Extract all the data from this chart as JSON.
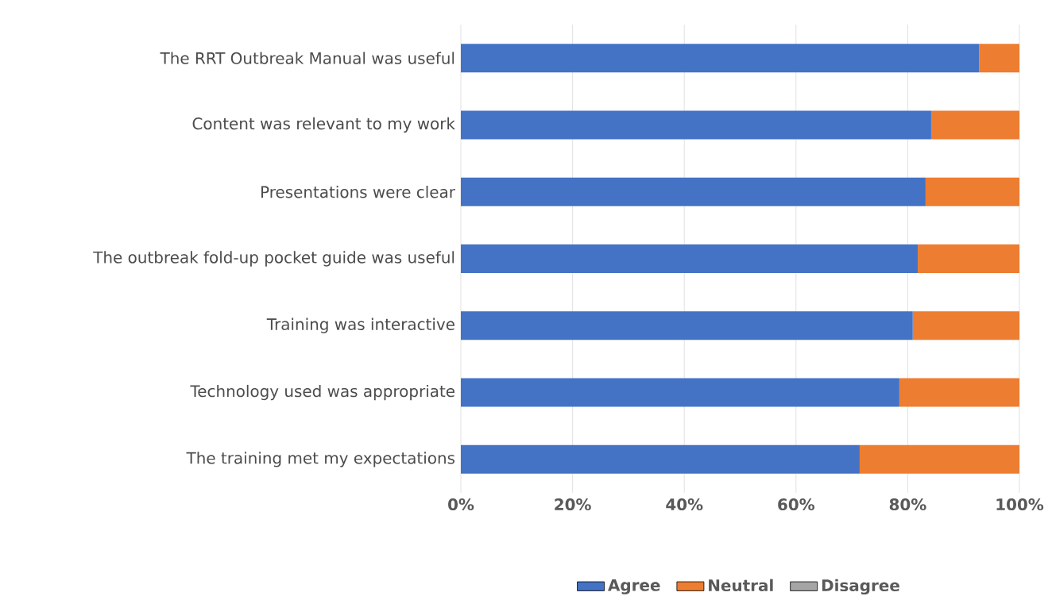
{
  "chart_data": {
    "type": "bar",
    "orientation": "horizontal",
    "stacked": true,
    "categories": [
      "The RRT Outbreak Manual was useful",
      "Content was relevant to my work",
      "Presentations  were clear",
      "The outbreak fold-up pocket guide was useful",
      "Training was interactive",
      "Technology used was appropriate",
      "The training met my expectations"
    ],
    "series": [
      {
        "name": "Agree",
        "color": "#4472c4",
        "values": [
          92.8,
          84.2,
          83.2,
          81.8,
          80.9,
          78.5,
          71.4
        ]
      },
      {
        "name": "Neutral",
        "color": "#ed7d31",
        "values": [
          7.2,
          15.8,
          16.8,
          18.2,
          19.1,
          21.5,
          28.6
        ]
      },
      {
        "name": "Disagree",
        "color": "#a5a5a5",
        "values": [
          0,
          0,
          0,
          0,
          0,
          0,
          0
        ]
      }
    ],
    "xlim": [
      0,
      100
    ],
    "xticks": [
      {
        "value": 0,
        "label": "0%"
      },
      {
        "value": 20,
        "label": "20%"
      },
      {
        "value": 40,
        "label": "40%"
      },
      {
        "value": 60,
        "label": "60%"
      },
      {
        "value": 80,
        "label": "80%"
      },
      {
        "value": 100,
        "label": "100%"
      }
    ],
    "grid": "x",
    "legend": "bottom"
  }
}
